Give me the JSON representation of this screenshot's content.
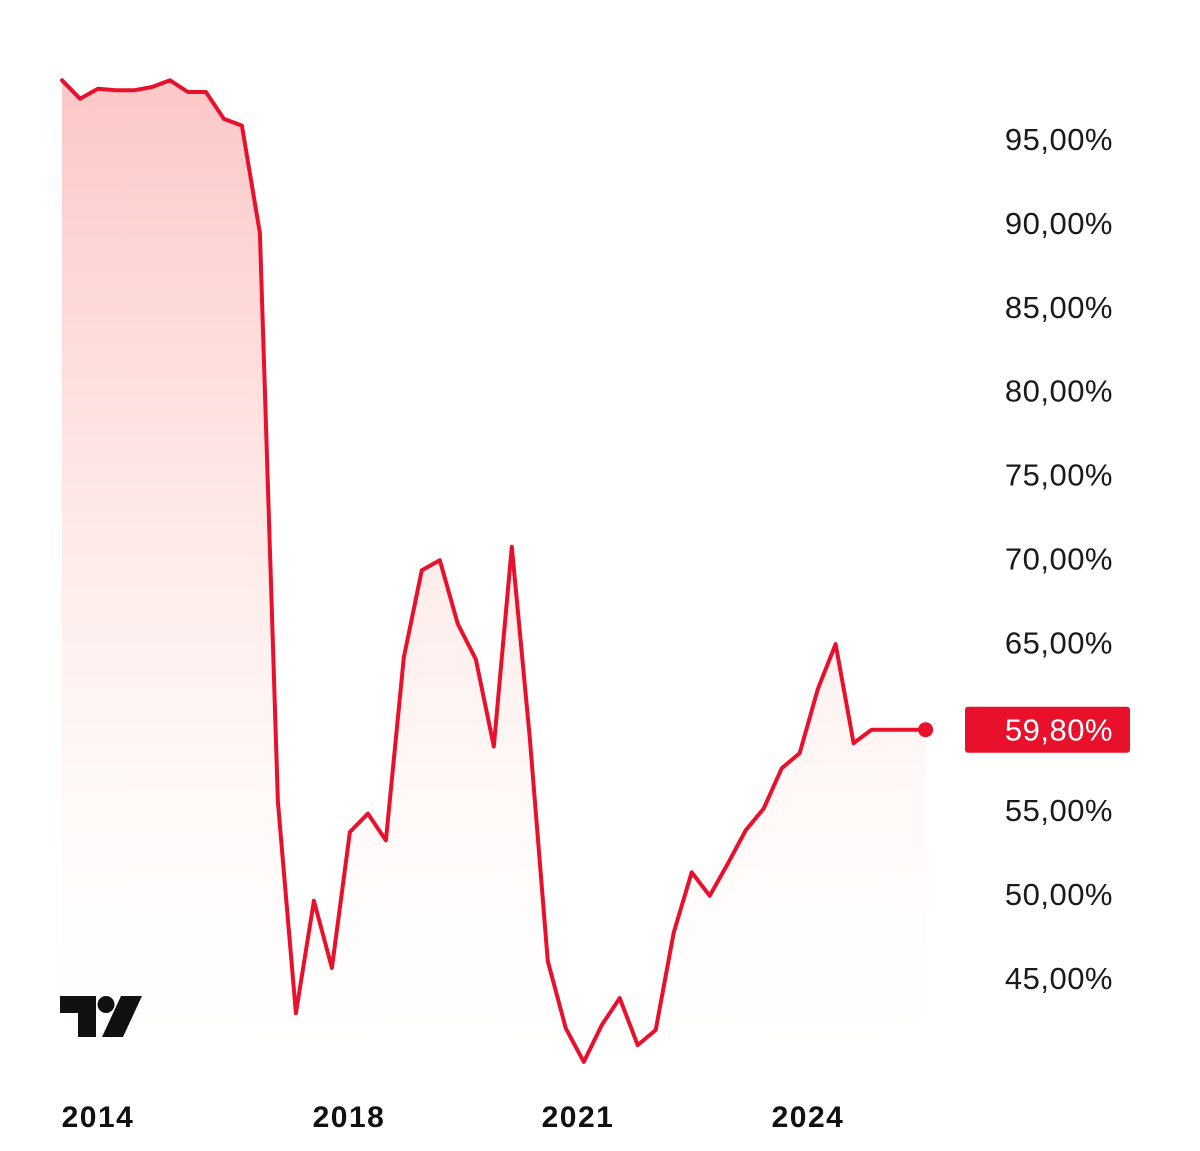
{
  "brand": {
    "logo_icon": "tradingview-logo-icon",
    "line_color": "#e8102a",
    "fill_color_top": "#fcc4c4",
    "fill_color_bottom": "#fffdf8",
    "badge_color": "#e8102a"
  },
  "chart_data": {
    "type": "area",
    "title": "",
    "xlabel": "",
    "ylabel": "",
    "y_axis_position": "right",
    "grid": false,
    "x_domain": [
      2013.85,
      2026.05
    ],
    "ylim": [
      41.2,
      98.5
    ],
    "y_ticks": [
      {
        "value": 95,
        "label": "95,00%"
      },
      {
        "value": 90,
        "label": "90,00%"
      },
      {
        "value": 85,
        "label": "85,00%"
      },
      {
        "value": 80,
        "label": "80,00%"
      },
      {
        "value": 75,
        "label": "75,00%"
      },
      {
        "value": 70,
        "label": "70,00%"
      },
      {
        "value": 65,
        "label": "65,00%"
      },
      {
        "value": 55,
        "label": "55,00%"
      },
      {
        "value": 50,
        "label": "50,00%"
      },
      {
        "value": 45,
        "label": "45,00%"
      }
    ],
    "x_ticks": [
      {
        "value": 2014,
        "label": "2014"
      },
      {
        "value": 2018,
        "label": "2018"
      },
      {
        "value": 2021,
        "label": "2021"
      },
      {
        "value": 2024,
        "label": "2024"
      }
    ],
    "last_value": {
      "value": 59.8,
      "label": "59,80%"
    },
    "series": [
      {
        "name": "series",
        "x": [
          2013.85,
          2014.1,
          2014.35,
          2014.6,
          2014.85,
          2015.1,
          2015.35,
          2015.6,
          2015.85,
          2016.1,
          2016.35,
          2016.6,
          2016.85,
          2017.1,
          2017.35,
          2017.6,
          2017.85,
          2018.1,
          2018.35,
          2018.6,
          2018.85,
          2019.1,
          2019.35,
          2019.6,
          2019.85,
          2020.1,
          2020.35,
          2020.6,
          2020.85,
          2021.1,
          2021.35,
          2021.6,
          2021.85,
          2022.1,
          2022.35,
          2022.6,
          2022.85,
          2023.1,
          2023.35,
          2023.6,
          2023.85,
          2024.1,
          2024.35,
          2024.6,
          2024.85,
          2025.1,
          2025.35,
          2025.6,
          2025.85
        ],
        "values": [
          98.5,
          97.4,
          98.0,
          97.9,
          97.9,
          98.1,
          98.5,
          97.8,
          97.8,
          96.2,
          95.8,
          89.4,
          55.5,
          42.9,
          49.6,
          45.6,
          53.7,
          54.8,
          53.2,
          64.1,
          69.3,
          69.9,
          66.1,
          64.0,
          58.8,
          70.7,
          59.3,
          46.0,
          42.0,
          40.0,
          42.2,
          43.8,
          41.0,
          41.9,
          47.7,
          51.3,
          49.9,
          51.8,
          53.8,
          55.1,
          57.5,
          58.4,
          62.2,
          64.9,
          59.0,
          59.8,
          59.8,
          59.8,
          59.8
        ]
      }
    ]
  }
}
